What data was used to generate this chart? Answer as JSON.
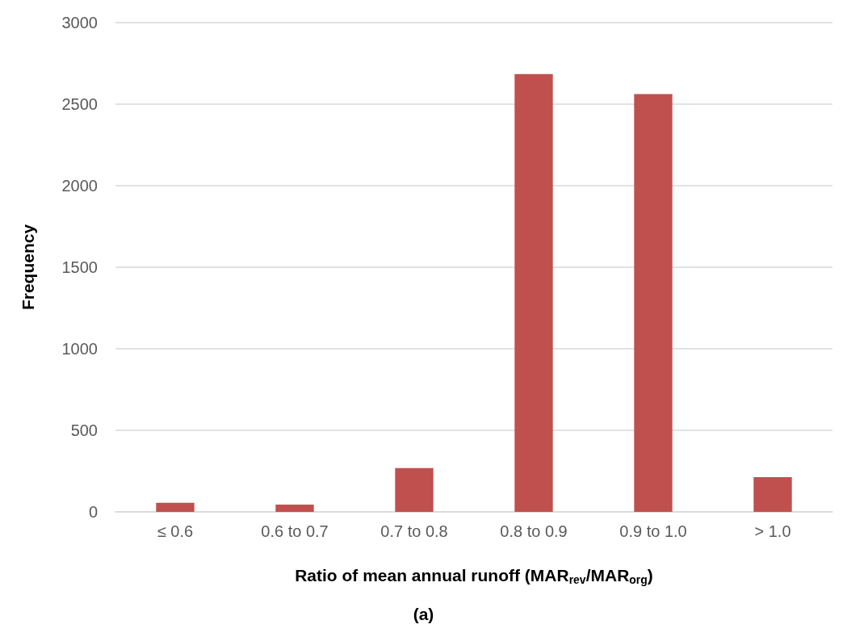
{
  "chart_data": {
    "type": "bar",
    "categories": [
      "≤ 0.6",
      "0.6 to 0.7",
      "0.7 to 0.8",
      "0.8 to 0.9",
      "0.9 to 1.0",
      "> 1.0"
    ],
    "values": [
      56,
      44,
      269,
      2685,
      2562,
      213
    ],
    "color": "#c0504d",
    "xlabel": "Ratio of mean annual runoff (MAR$_{rev}$/MAR$_{org}$)",
    "ylabel": "Frequency",
    "ylim": [
      0,
      3000
    ],
    "yticks": [
      0,
      500,
      1000,
      1500,
      2000,
      2500,
      3000
    ],
    "grid": "y",
    "annotations": [
      "(a)"
    ]
  }
}
